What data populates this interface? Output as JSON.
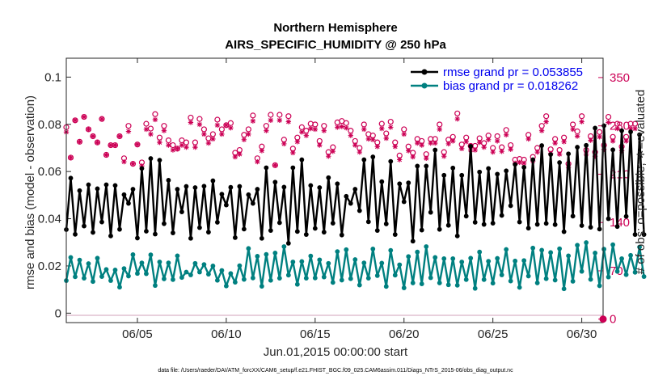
{
  "colors": {
    "rmse": "#000000",
    "bias": "#008080",
    "obs": "#cc0055",
    "legend_text": "#0000ee",
    "axis": "#262626",
    "zero_line": "#d9b3c8"
  },
  "chart_data": {
    "type": "line",
    "title": "Northern Hemisphere",
    "subtitle": "AIRS_SPECIFIC_HUMIDITY @ 250 hPa",
    "xlabel": "Jun.01,2015 00:00:00 start",
    "ylabel": "rmse and bias (model - observation)",
    "y2label": "# of obs: o=possible; ∗=evaluated",
    "footnote": "data file: /Users/raeder/DAI/ATM_forcXX/CAM6_setup/f.e21.FHIST_BGC.f09_025.CAM6assim.011/Diags_NTrS_2015-06/obs_diag_output.nc",
    "xlim": [
      1,
      31.2
    ],
    "ylim": [
      -0.004,
      0.108
    ],
    "y2lim": [
      -5.0,
      378.0
    ],
    "x_ticks": [
      5,
      10,
      15,
      20,
      25,
      30
    ],
    "x_tick_labels": [
      "06/05",
      "06/10",
      "06/15",
      "06/20",
      "06/25",
      "06/30"
    ],
    "y_ticks": [
      0,
      0.02,
      0.04,
      0.06,
      0.08,
      0.1
    ],
    "y_tick_labels": [
      "0",
      "0.02",
      "0.04",
      "0.06",
      "0.08",
      "0.1"
    ],
    "y2_ticks": [
      0,
      70,
      140,
      210,
      280,
      350
    ],
    "y2_tick_labels": [
      "0",
      "70",
      "140",
      "210",
      "280",
      "350"
    ],
    "legend": {
      "position": "top-right",
      "entries": [
        "rmse grand pr = 0.053855",
        "bias grand pr = 0.018262"
      ]
    },
    "series": [
      {
        "name": "rmse",
        "x_start": 1.0,
        "x_step": 0.25,
        "values": [
          0.0354,
          0.0572,
          0.0334,
          0.0519,
          0.0369,
          0.0544,
          0.0342,
          0.0527,
          0.0386,
          0.0544,
          0.0327,
          0.0541,
          0.0355,
          0.0502,
          0.0465,
          0.0525,
          0.0318,
          0.0613,
          0.0347,
          0.0655,
          0.0335,
          0.0648,
          0.0379,
          0.0563,
          0.034,
          0.0525,
          0.0429,
          0.0537,
          0.0317,
          0.0532,
          0.0362,
          0.0538,
          0.0343,
          0.0561,
          0.0385,
          0.0504,
          0.0458,
          0.0533,
          0.032,
          0.0537,
          0.0356,
          0.0502,
          0.0465,
          0.0525,
          0.0317,
          0.0616,
          0.035,
          0.0555,
          0.0383,
          0.0534,
          0.0296,
          0.0616,
          0.0346,
          0.065,
          0.0333,
          0.0541,
          0.0359,
          0.0532,
          0.0343,
          0.0574,
          0.0381,
          0.0548,
          0.0331,
          0.0495,
          0.0465,
          0.0525,
          0.0434,
          0.065,
          0.0387,
          0.0662,
          0.035,
          0.0557,
          0.0378,
          0.0643,
          0.0333,
          0.0548,
          0.0472,
          0.0552,
          0.0305,
          0.0623,
          0.0352,
          0.0623,
          0.0427,
          0.0691,
          0.0355,
          0.0584,
          0.0372,
          0.0615,
          0.0327,
          0.0584,
          0.0411,
          0.0707,
          0.0385,
          0.0598,
          0.0376,
          0.0613,
          0.0381,
          0.0589,
          0.0414,
          0.0603,
          0.0455,
          0.063,
          0.0386,
          0.0618,
          0.036,
          0.065,
          0.0376,
          0.071,
          0.038,
          0.0672,
          0.0375,
          0.0638,
          0.0345,
          0.0675,
          0.0411,
          0.0703,
          0.0371,
          0.0711,
          0.0364,
          0.0784,
          0.0356,
          0.0794,
          0.04,
          0.0692,
          0.0367,
          0.0773,
          0.041,
          0.0768,
          0.0333,
          0.0756,
          0.0333
        ]
      },
      {
        "name": "bias",
        "x_start": 1.0,
        "x_step": 0.25,
        "values": [
          0.0138,
          0.0236,
          0.0154,
          0.0225,
          0.0148,
          0.021,
          0.0134,
          0.0233,
          0.0155,
          0.0185,
          0.0138,
          0.0183,
          0.011,
          0.0189,
          0.0157,
          0.0248,
          0.0168,
          0.0213,
          0.0167,
          0.0247,
          0.0117,
          0.0217,
          0.0145,
          0.0213,
          0.0142,
          0.0243,
          0.0151,
          0.0174,
          0.0162,
          0.0211,
          0.0174,
          0.0206,
          0.0165,
          0.02,
          0.0139,
          0.0181,
          0.0115,
          0.0168,
          0.0131,
          0.0201,
          0.0143,
          0.0274,
          0.0149,
          0.0241,
          0.0114,
          0.0249,
          0.0139,
          0.0255,
          0.0148,
          0.0282,
          0.0161,
          0.0217,
          0.0122,
          0.0219,
          0.0148,
          0.0242,
          0.0149,
          0.0226,
          0.0153,
          0.0211,
          0.013,
          0.0261,
          0.014,
          0.0269,
          0.0146,
          0.0227,
          0.0119,
          0.0213,
          0.0148,
          0.0272,
          0.0159,
          0.0212,
          0.0113,
          0.0266,
          0.0161,
          0.0205,
          0.0107,
          0.024,
          0.0128,
          0.0259,
          0.0124,
          0.0282,
          0.015,
          0.0236,
          0.0128,
          0.0231,
          0.012,
          0.0231,
          0.0118,
          0.0217,
          0.0142,
          0.0233,
          0.0105,
          0.0259,
          0.0142,
          0.022,
          0.0127,
          0.0232,
          0.0162,
          0.027,
          0.0136,
          0.0221,
          0.0109,
          0.0223,
          0.0157,
          0.0276,
          0.0128,
          0.0267,
          0.0146,
          0.0257,
          0.014,
          0.0273,
          0.0103,
          0.0243,
          0.0135,
          0.0288,
          0.0177,
          0.0299,
          0.0143,
          0.0255,
          0.0116,
          0.0271,
          0.0153,
          0.029,
          0.0177,
          0.0231,
          0.0163,
          0.0245,
          0.0173,
          0.028,
          0.0155
        ]
      }
    ],
    "obs_possible": {
      "x_start": 1.0,
      "x_step": 0.25,
      "values": [
        278,
        234,
        288,
        257,
        293,
        275,
        265,
        256,
        290,
        238,
        252,
        252,
        265,
        233,
        280,
        225,
        253,
        227,
        283,
        276,
        297,
        263,
        280,
        259,
        252,
        247,
        259,
        256,
        292,
        256,
        290,
        275,
        262,
        268,
        289,
        275,
        281,
        284,
        241,
        245,
        267,
        275,
        295,
        233,
        250,
        280,
        296,
        223,
        296,
        260,
        294,
        247,
        263,
        278,
        273,
        283,
        282,
        258,
        280,
        242,
        249,
        285,
        287,
        284,
        273,
        258,
        248,
        282,
        268,
        266,
        256,
        283,
        269,
        286,
        256,
        237,
        275,
        250,
        241,
        261,
        258,
        239,
        261,
        261,
        282,
        242,
        260,
        264,
        298,
        253,
        263,
        251,
        251,
        262,
        255,
        266,
        248,
        265,
        249,
        274,
        252,
        231,
        232,
        231,
        267,
        235,
        248,
        280,
        294,
        246,
        261,
        245,
        263,
        225,
        282,
        272,
        294,
        245,
        265,
        242,
        271,
        252,
        293,
        264,
        283,
        250,
        264,
        283,
        283
      ]
    },
    "obs_evaluated": {
      "x_start": 1.0,
      "x_step": 0.25,
      "values": [
        271,
        234,
        288,
        257,
        293,
        275,
        265,
        256,
        290,
        238,
        252,
        252,
        265,
        228,
        272,
        225,
        253,
        222,
        275,
        268,
        289,
        256,
        273,
        252,
        245,
        247,
        252,
        249,
        285,
        249,
        282,
        268,
        255,
        261,
        281,
        268,
        281,
        277,
        235,
        239,
        260,
        268,
        287,
        228,
        244,
        273,
        288,
        223,
        288,
        254,
        286,
        241,
        257,
        271,
        266,
        276,
        275,
        252,
        273,
        236,
        243,
        278,
        279,
        277,
        266,
        252,
        242,
        275,
        261,
        260,
        250,
        276,
        262,
        278,
        250,
        231,
        268,
        244,
        235,
        255,
        252,
        233,
        255,
        255,
        275,
        236,
        254,
        258,
        290,
        247,
        257,
        245,
        245,
        256,
        249,
        260,
        242,
        258,
        243,
        267,
        246,
        226,
        227,
        226,
        261,
        229,
        242,
        273,
        286,
        240,
        255,
        239,
        257,
        220,
        275,
        265,
        286,
        239,
        259,
        236,
        264,
        246,
        285,
        258,
        276,
        244,
        258,
        276,
        276
      ]
    }
  }
}
